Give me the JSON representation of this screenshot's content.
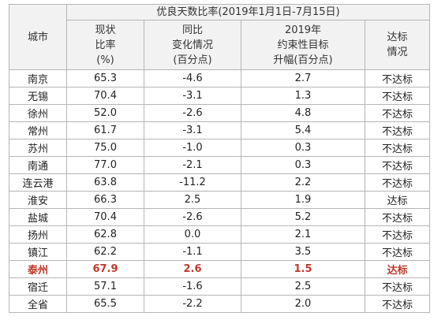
{
  "table": {
    "group_header": "优良天数比率(2019年1月1日-7月15日)",
    "col_city": "城市",
    "col_current": [
      "现状",
      "比率",
      "(%)"
    ],
    "col_yoy": [
      "同比",
      "变化情况",
      "(百分点)"
    ],
    "col_target": [
      "2019年",
      "约束性目标",
      "升幅(百分点)"
    ],
    "col_status": [
      "达标",
      "情况"
    ],
    "rows": [
      {
        "city": "南京",
        "current": "65.3",
        "yoy": "-4.6",
        "target": "2.7",
        "status": "不达标"
      },
      {
        "city": "无锡",
        "current": "70.4",
        "yoy": "-3.1",
        "target": "1.3",
        "status": "不达标"
      },
      {
        "city": "徐州",
        "current": "52.0",
        "yoy": "-2.6",
        "target": "4.8",
        "status": "不达标"
      },
      {
        "city": "常州",
        "current": "61.7",
        "yoy": "-3.1",
        "target": "5.4",
        "status": "不达标"
      },
      {
        "city": "苏州",
        "current": "75.0",
        "yoy": "-1.0",
        "target": "0.3",
        "status": "不达标"
      },
      {
        "city": "南通",
        "current": "77.0",
        "yoy": "-2.1",
        "target": "0.3",
        "status": "不达标"
      },
      {
        "city": "连云港",
        "current": "63.8",
        "yoy": "-11.2",
        "target": "2.2",
        "status": "不达标"
      },
      {
        "city": "淮安",
        "current": "66.3",
        "yoy": "2.5",
        "target": "1.9",
        "status": "达标"
      },
      {
        "city": "盐城",
        "current": "70.4",
        "yoy": "-2.6",
        "target": "5.2",
        "status": "不达标"
      },
      {
        "city": "扬州",
        "current": "62.8",
        "yoy": "0.0",
        "target": "2.1",
        "status": "不达标"
      },
      {
        "city": "镇江",
        "current": "62.2",
        "yoy": "-1.1",
        "target": "3.5",
        "status": "不达标"
      },
      {
        "city": "泰州",
        "current": "67.9",
        "yoy": "2.6",
        "target": "1.5",
        "status": "达标",
        "highlight": true
      },
      {
        "city": "宿迁",
        "current": "57.1",
        "yoy": "-1.6",
        "target": "2.5",
        "status": "不达标"
      },
      {
        "city": "全省",
        "current": "65.5",
        "yoy": "-2.2",
        "target": "2.0",
        "status": "不达标"
      }
    ]
  },
  "colors": {
    "highlight": "#c0392b",
    "border": "#b5b5b5",
    "header_bg": "#f2f2f2"
  }
}
